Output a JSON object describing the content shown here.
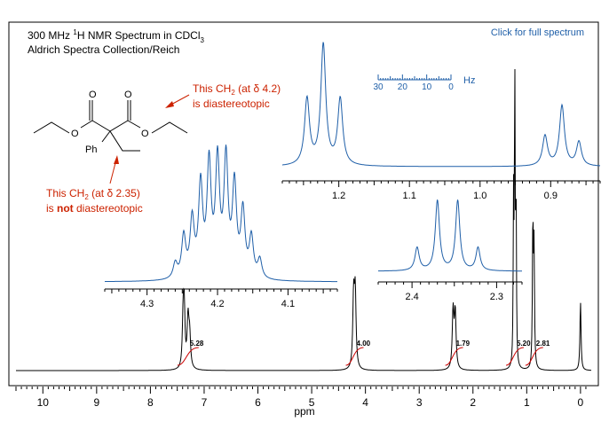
{
  "header": {
    "title_prefix": "300 MHz ",
    "title_sup": "1",
    "title_suffix": "H NMR Spectrum in CDCl",
    "title_sub": "3",
    "source": "Aldrich Spectra Collection/Reich"
  },
  "link": {
    "label": "Click for full spectrum",
    "color": "#1f5fa8"
  },
  "structure": {
    "ph_label": "Ph",
    "o_labels": [
      "O",
      "O",
      "O",
      "O"
    ]
  },
  "annotations": {
    "ch2_42": {
      "line1_pre": "This CH",
      "line1_sub": "2",
      "line1_post": " (at δ 4.2)",
      "line2": "is diastereotopic"
    },
    "ch2_235": {
      "line1_pre": "This CH",
      "line1_sub": "2",
      "line1_post": " (at δ 2.35)",
      "line2_bold": "not",
      "line2_pre": "is ",
      "line2_post": " diastereotopic"
    },
    "color": "#cc2200"
  },
  "hz_scale": {
    "unit": "Hz",
    "ticks": [
      "30",
      "20",
      "10",
      "0"
    ]
  },
  "colors": {
    "main_trace": "#000000",
    "inset_trace": "#1f5fa8",
    "integral": "#cc0000",
    "frame": "#000000"
  },
  "chart_data": [
    {
      "type": "line",
      "title": "300 MHz 1H NMR Spectrum in CDCl3",
      "xlabel": "ppm",
      "xlim": [
        10.5,
        -0.2
      ],
      "x_reversed": true,
      "xticks": [
        "10",
        "9",
        "8",
        "7",
        "6",
        "5",
        "4",
        "3",
        "2",
        "1",
        "0"
      ],
      "peaks_ppm": [
        7.37,
        7.3,
        4.2,
        2.35,
        1.22,
        0.86,
        0.0
      ],
      "integrals": [
        {
          "ppm": 7.3,
          "label": "5.28"
        },
        {
          "ppm": 4.2,
          "label": "4.00"
        },
        {
          "ppm": 2.35,
          "label": "1.79"
        },
        {
          "ppm": 1.22,
          "label": "5.20"
        },
        {
          "ppm": 0.86,
          "label": "2.81"
        }
      ]
    },
    {
      "type": "line",
      "name": "inset 4.2 ppm",
      "xlim": [
        4.36,
        4.03
      ],
      "xticks": [
        "4.3",
        "4.2",
        "4.1"
      ],
      "peaks_ppm": [
        4.26,
        4.248,
        4.236,
        4.224,
        4.212,
        4.2,
        4.188,
        4.176,
        4.164,
        4.152,
        4.14
      ],
      "rel_heights": [
        0.12,
        0.33,
        0.45,
        0.72,
        0.88,
        0.9,
        0.92,
        0.72,
        0.52,
        0.32,
        0.15
      ]
    },
    {
      "type": "line",
      "name": "inset 1 ppm",
      "xlim": [
        1.28,
        0.83
      ],
      "xticks": [
        "1.2",
        "1.1",
        "1.0",
        "0.9"
      ],
      "peaks_ppm": [
        1.245,
        1.222,
        1.198,
        0.908,
        0.884,
        0.86
      ],
      "rel_heights": [
        0.55,
        1.0,
        0.55,
        0.25,
        0.5,
        0.2
      ]
    },
    {
      "type": "line",
      "name": "inset 2.35 ppm",
      "xlim": [
        2.44,
        2.27
      ],
      "xticks": [
        "2.4",
        "2.3"
      ],
      "peaks_ppm": [
        2.394,
        2.37,
        2.346,
        2.322
      ],
      "rel_heights": [
        0.28,
        0.85,
        0.85,
        0.28
      ]
    }
  ]
}
